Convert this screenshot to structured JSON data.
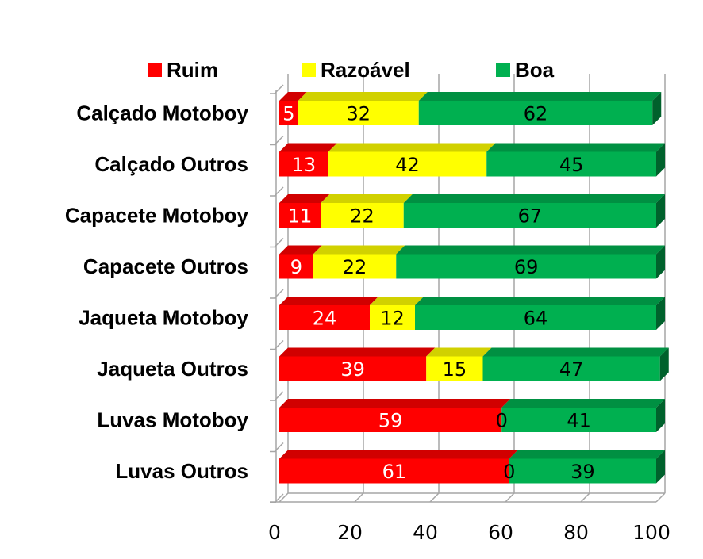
{
  "chart_data": {
    "type": "bar",
    "orientation": "horizontal",
    "stacked": true,
    "categories": [
      "Calçado Motoboy",
      "Calçado Outros",
      "Capacete Motoboy",
      "Capacete Outros",
      "Jaqueta Motoboy",
      "Jaqueta Outros",
      "Luvas Motoboy",
      "Luvas Outros"
    ],
    "series": [
      {
        "name": "Ruim",
        "color": "#ff0000",
        "label_color": "#ffffff",
        "values": [
          5,
          13,
          11,
          9,
          24,
          39,
          59,
          61
        ]
      },
      {
        "name": "Razoável",
        "color": "#ffff00",
        "label_color": "#000000",
        "values": [
          32,
          42,
          22,
          22,
          12,
          15,
          0,
          0
        ]
      },
      {
        "name": "Boa",
        "color": "#00b050",
        "label_color": "#000000",
        "values": [
          62,
          45,
          67,
          69,
          64,
          47,
          41,
          39
        ]
      }
    ],
    "xlim": [
      0,
      100
    ],
    "xticks": [
      0,
      20,
      40,
      60,
      80,
      100
    ],
    "title": "",
    "xlabel": "",
    "ylabel": "",
    "legend_position": "top",
    "grid": true,
    "style": "3d"
  }
}
